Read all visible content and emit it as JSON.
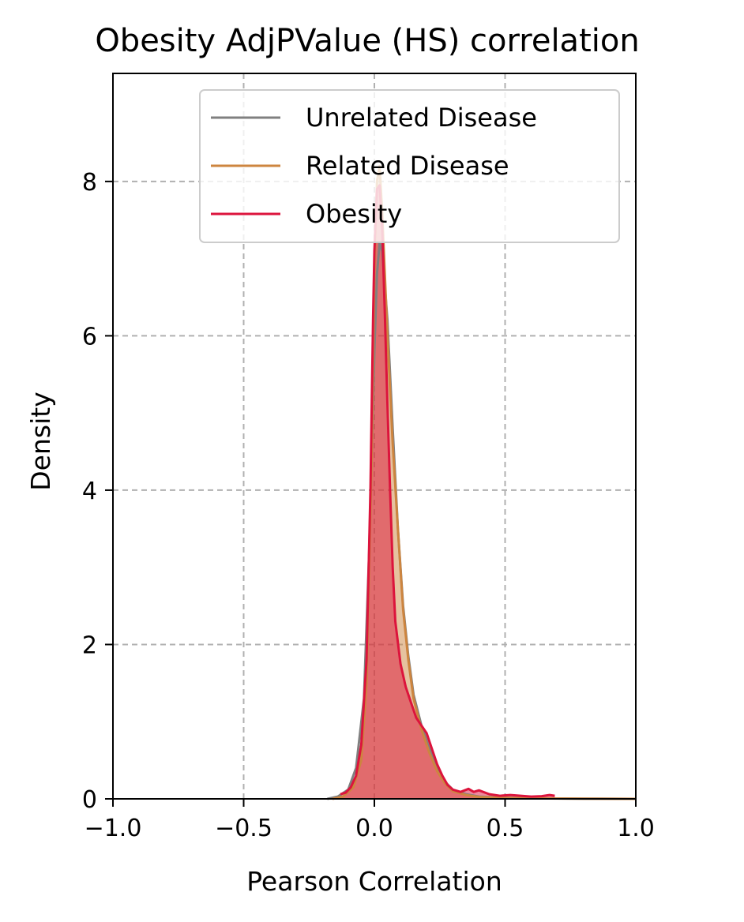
{
  "chart_data": {
    "type": "area",
    "title": "Obesity AdjPValue (HS) correlation",
    "xlabel": "Pearson Correlation",
    "ylabel": "Density",
    "xlim": [
      -1.0,
      1.0
    ],
    "ylim": [
      0,
      9.4
    ],
    "xticks": [
      -1.0,
      -0.5,
      0.0,
      0.5,
      1.0
    ],
    "xtick_labels": [
      "−1.0",
      "−0.5",
      "0.0",
      "0.5",
      "1.0"
    ],
    "yticks": [
      0,
      2,
      4,
      6,
      8
    ],
    "ytick_labels": [
      "0",
      "2",
      "4",
      "6",
      "8"
    ],
    "grid": true,
    "legend_position": "top-right",
    "series": [
      {
        "name": "Unrelated Disease",
        "color": "#808080",
        "fill": false,
        "x": [
          -0.18,
          -0.14,
          -0.1,
          -0.07,
          -0.04,
          -0.02,
          0.0,
          0.01,
          0.02,
          0.03,
          0.05,
          0.07,
          0.09,
          0.11,
          0.13,
          0.15,
          0.18,
          0.21,
          0.24,
          0.27,
          0.3,
          0.35,
          0.4,
          0.5,
          0.6,
          0.8,
          1.0
        ],
        "y": [
          0.0,
          0.03,
          0.12,
          0.4,
          1.3,
          3.2,
          5.8,
          6.8,
          7.2,
          7.1,
          6.2,
          4.8,
          3.5,
          2.5,
          1.85,
          1.35,
          0.95,
          0.65,
          0.4,
          0.22,
          0.12,
          0.06,
          0.03,
          0.015,
          0.008,
          0.003,
          0.0
        ]
      },
      {
        "name": "Related Disease",
        "color": "#cd853f",
        "fill": true,
        "x": [
          -0.16,
          -0.12,
          -0.08,
          -0.05,
          -0.03,
          -0.01,
          0.0,
          0.01,
          0.02,
          0.03,
          0.05,
          0.07,
          0.09,
          0.11,
          0.13,
          0.15,
          0.18,
          0.21,
          0.24,
          0.27,
          0.3,
          0.35,
          0.4,
          0.5,
          0.6,
          0.8,
          1.0
        ],
        "y": [
          0.0,
          0.03,
          0.15,
          0.5,
          1.5,
          4.5,
          6.8,
          8.0,
          8.2,
          7.6,
          6.0,
          4.6,
          3.5,
          2.45,
          1.8,
          1.3,
          0.9,
          0.6,
          0.36,
          0.2,
          0.1,
          0.05,
          0.025,
          0.012,
          0.006,
          0.002,
          0.0
        ]
      },
      {
        "name": "Obesity",
        "color": "#dc143c",
        "fill": true,
        "x": [
          -0.13,
          -0.11,
          -0.09,
          -0.07,
          -0.05,
          -0.03,
          -0.015,
          -0.005,
          0.0,
          0.01,
          0.02,
          0.03,
          0.04,
          0.05,
          0.06,
          0.07,
          0.08,
          0.1,
          0.12,
          0.14,
          0.16,
          0.18,
          0.2,
          0.22,
          0.24,
          0.26,
          0.28,
          0.3,
          0.33,
          0.36,
          0.38,
          0.4,
          0.44,
          0.48,
          0.52,
          0.56,
          0.6,
          0.64,
          0.67,
          0.69
        ],
        "y": [
          0.06,
          0.08,
          0.15,
          0.3,
          0.7,
          1.8,
          4.0,
          6.2,
          7.1,
          7.9,
          7.95,
          7.4,
          6.3,
          5.1,
          4.0,
          3.0,
          2.3,
          1.75,
          1.45,
          1.25,
          1.05,
          0.95,
          0.85,
          0.65,
          0.45,
          0.3,
          0.18,
          0.12,
          0.09,
          0.13,
          0.09,
          0.11,
          0.06,
          0.04,
          0.05,
          0.04,
          0.03,
          0.035,
          0.05,
          0.04
        ]
      }
    ]
  }
}
